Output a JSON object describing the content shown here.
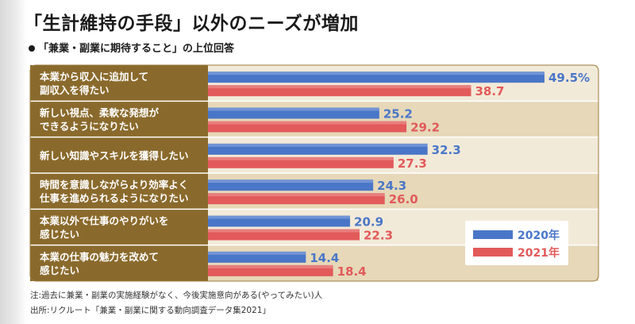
{
  "title": "「生計維持の手段」以外のニーズが増加",
  "subtitle": "「兼業・副業に期待すること」の上位回答",
  "notes": [
    "注:過去に兼業・副業の実施経験がなく、今後実施意向がある(やってみたい)人",
    "出所:リクルート「兼業・副業に関する動向調査データ集2021」"
  ],
  "colors": {
    "series_2020": "#4a76c8",
    "series_2021": "#e25a5a",
    "label_2020": "#4a76c8",
    "label_2021": "#e25a5a",
    "category_bg": "#8a6a2c",
    "row_bg_odd": "#f2ead9",
    "row_bg_even": "#e6d8b8",
    "frame": "#9a7b3c"
  },
  "chart_data": {
    "type": "bar",
    "orientation": "horizontal",
    "categories": [
      [
        "本業から収入に追加して",
        "副収入を得たい"
      ],
      [
        "新しい視点、柔軟な発想が",
        "できるようになりたい"
      ],
      [
        "新しい知識やスキルを獲得したい"
      ],
      [
        "時間を意識しながらより効率よく",
        "仕事を進められるようになりたい"
      ],
      [
        "本業以外で仕事のやりがいを",
        "感じたい"
      ],
      [
        "本業の仕事の魅力を改めて",
        "感じたい"
      ]
    ],
    "series": [
      {
        "name": "2020年",
        "values": [
          49.5,
          25.2,
          32.3,
          24.3,
          20.9,
          14.4
        ]
      },
      {
        "name": "2021年",
        "values": [
          38.7,
          29.2,
          27.3,
          26.0,
          22.3,
          18.4
        ]
      }
    ],
    "value_labels": [
      [
        "49.5%",
        "25.2",
        "32.3",
        "24.3",
        "20.9",
        "14.4"
      ],
      [
        "38.7",
        "29.2",
        "27.3",
        "26.0",
        "22.3",
        "18.4"
      ]
    ],
    "xlim": [
      0,
      54
    ],
    "grid": false,
    "legend": {
      "position": "bottom-right",
      "items": [
        "2020年",
        "2021年"
      ]
    }
  }
}
